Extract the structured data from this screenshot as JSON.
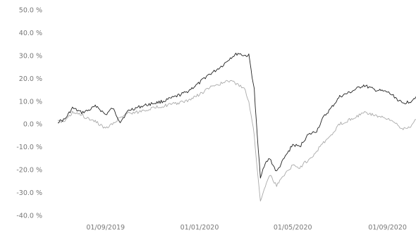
{
  "chart_data": {
    "type": "line",
    "x_ticks": [
      "01/09/2019",
      "01/01/2020",
      "01/05/2020",
      "01/09/2020"
    ],
    "y_ticks": [
      "50.0 %",
      "40.0 %",
      "30.0 %",
      "20.0 %",
      "10.0 %",
      "0.0 %",
      "-10.0 %",
      "-20.0 %",
      "-30.0 %",
      "-40.0 %"
    ],
    "ylim": [
      -40,
      50
    ],
    "xlim": [
      "2019-07-01",
      "2020-10-08"
    ],
    "grid": false,
    "legend": "none",
    "series": [
      {
        "color": "#222222",
        "x": [
          "2019-07-01",
          "2019-07-10",
          "2019-07-20",
          "2019-08-01",
          "2019-08-10",
          "2019-08-20",
          "2019-09-01",
          "2019-09-10",
          "2019-09-20",
          "2019-10-01",
          "2019-10-10",
          "2019-10-20",
          "2019-11-01",
          "2019-11-15",
          "2019-12-01",
          "2019-12-15",
          "2020-01-01",
          "2020-01-10",
          "2020-01-20",
          "2020-02-01",
          "2020-02-10",
          "2020-02-20",
          "2020-02-28",
          "2020-03-05",
          "2020-03-12",
          "2020-03-16",
          "2020-03-20",
          "2020-03-25",
          "2020-04-01",
          "2020-04-10",
          "2020-04-20",
          "2020-05-01",
          "2020-05-10",
          "2020-05-20",
          "2020-06-01",
          "2020-06-10",
          "2020-06-20",
          "2020-07-01",
          "2020-07-15",
          "2020-08-01",
          "2020-08-15",
          "2020-09-01",
          "2020-09-10",
          "2020-09-20",
          "2020-10-01",
          "2020-10-08"
        ],
        "y": [
          1,
          2,
          7,
          5,
          6,
          8,
          4,
          7,
          1,
          6,
          7,
          8,
          9,
          10,
          12,
          14,
          18,
          21,
          23,
          26,
          29,
          31,
          30,
          30,
          15,
          -6,
          -23,
          -18,
          -15,
          -21,
          -15,
          -9,
          -10,
          -5,
          -3,
          3,
          7,
          12,
          14,
          17,
          15,
          14,
          12,
          9,
          10,
          12
        ]
      },
      {
        "color": "#aaaaaa",
        "x": [
          "2019-07-01",
          "2019-07-10",
          "2019-07-20",
          "2019-08-01",
          "2019-08-10",
          "2019-08-20",
          "2019-09-01",
          "2019-09-10",
          "2019-09-20",
          "2019-10-01",
          "2019-10-10",
          "2019-10-20",
          "2019-11-01",
          "2019-11-15",
          "2019-12-01",
          "2019-12-15",
          "2020-01-01",
          "2020-01-10",
          "2020-01-20",
          "2020-02-01",
          "2020-02-10",
          "2020-02-20",
          "2020-02-28",
          "2020-03-05",
          "2020-03-12",
          "2020-03-16",
          "2020-03-20",
          "2020-03-25",
          "2020-04-01",
          "2020-04-10",
          "2020-04-20",
          "2020-05-01",
          "2020-05-10",
          "2020-05-20",
          "2020-06-01",
          "2020-06-10",
          "2020-06-20",
          "2020-07-01",
          "2020-07-15",
          "2020-08-01",
          "2020-08-15",
          "2020-09-01",
          "2020-09-10",
          "2020-09-20",
          "2020-10-01",
          "2020-10-08"
        ],
        "y": [
          1,
          1,
          5,
          4,
          2,
          1,
          -2,
          0,
          3,
          5,
          5,
          6,
          7,
          8,
          9,
          10,
          13,
          15,
          17,
          18,
          19,
          17,
          16,
          10,
          -5,
          -20,
          -34,
          -28,
          -22,
          -27,
          -22,
          -18,
          -19,
          -16,
          -12,
          -8,
          -5,
          0,
          2,
          5,
          4,
          2,
          1,
          -2,
          -1,
          2
        ]
      }
    ]
  }
}
